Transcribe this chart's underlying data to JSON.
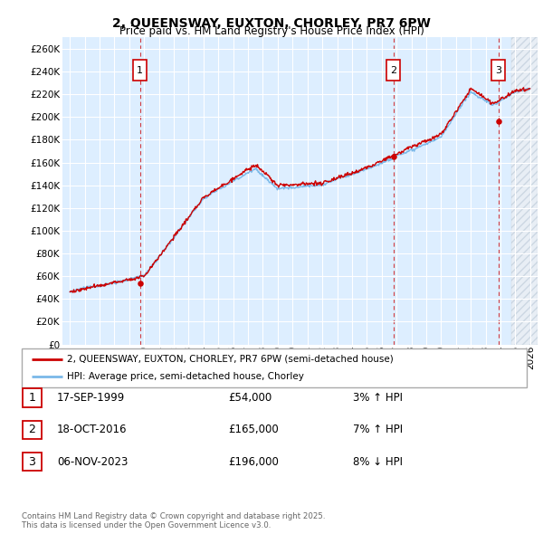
{
  "title": "2, QUEENSWAY, EUXTON, CHORLEY, PR7 6PW",
  "subtitle": "Price paid vs. HM Land Registry's House Price Index (HPI)",
  "legend_line1": "2, QUEENSWAY, EUXTON, CHORLEY, PR7 6PW (semi-detached house)",
  "legend_line2": "HPI: Average price, semi-detached house, Chorley",
  "footer": "Contains HM Land Registry data © Crown copyright and database right 2025.\nThis data is licensed under the Open Government Licence v3.0.",
  "transactions": [
    {
      "num": "1",
      "date": "17-SEP-1999",
      "price": "£54,000",
      "pct": "3%",
      "dir": "↑",
      "year": 1999.72,
      "price_val": 54000
    },
    {
      "num": "2",
      "date": "18-OCT-2016",
      "price": "£165,000",
      "pct": "7%",
      "dir": "↑",
      "year": 2016.8,
      "price_val": 165000
    },
    {
      "num": "3",
      "date": "06-NOV-2023",
      "price": "£196,000",
      "pct": "8%",
      "dir": "↓",
      "year": 2023.85,
      "price_val": 196000
    }
  ],
  "hpi_color": "#7ab8e8",
  "price_color": "#cc0000",
  "bg_color": "#ddeeff",
  "ylim": [
    0,
    270000
  ],
  "yticks": [
    0,
    20000,
    40000,
    60000,
    80000,
    100000,
    120000,
    140000,
    160000,
    180000,
    200000,
    220000,
    240000,
    260000
  ],
  "xlim": [
    1994.5,
    2026.5
  ],
  "hatch_start": 2024.75
}
